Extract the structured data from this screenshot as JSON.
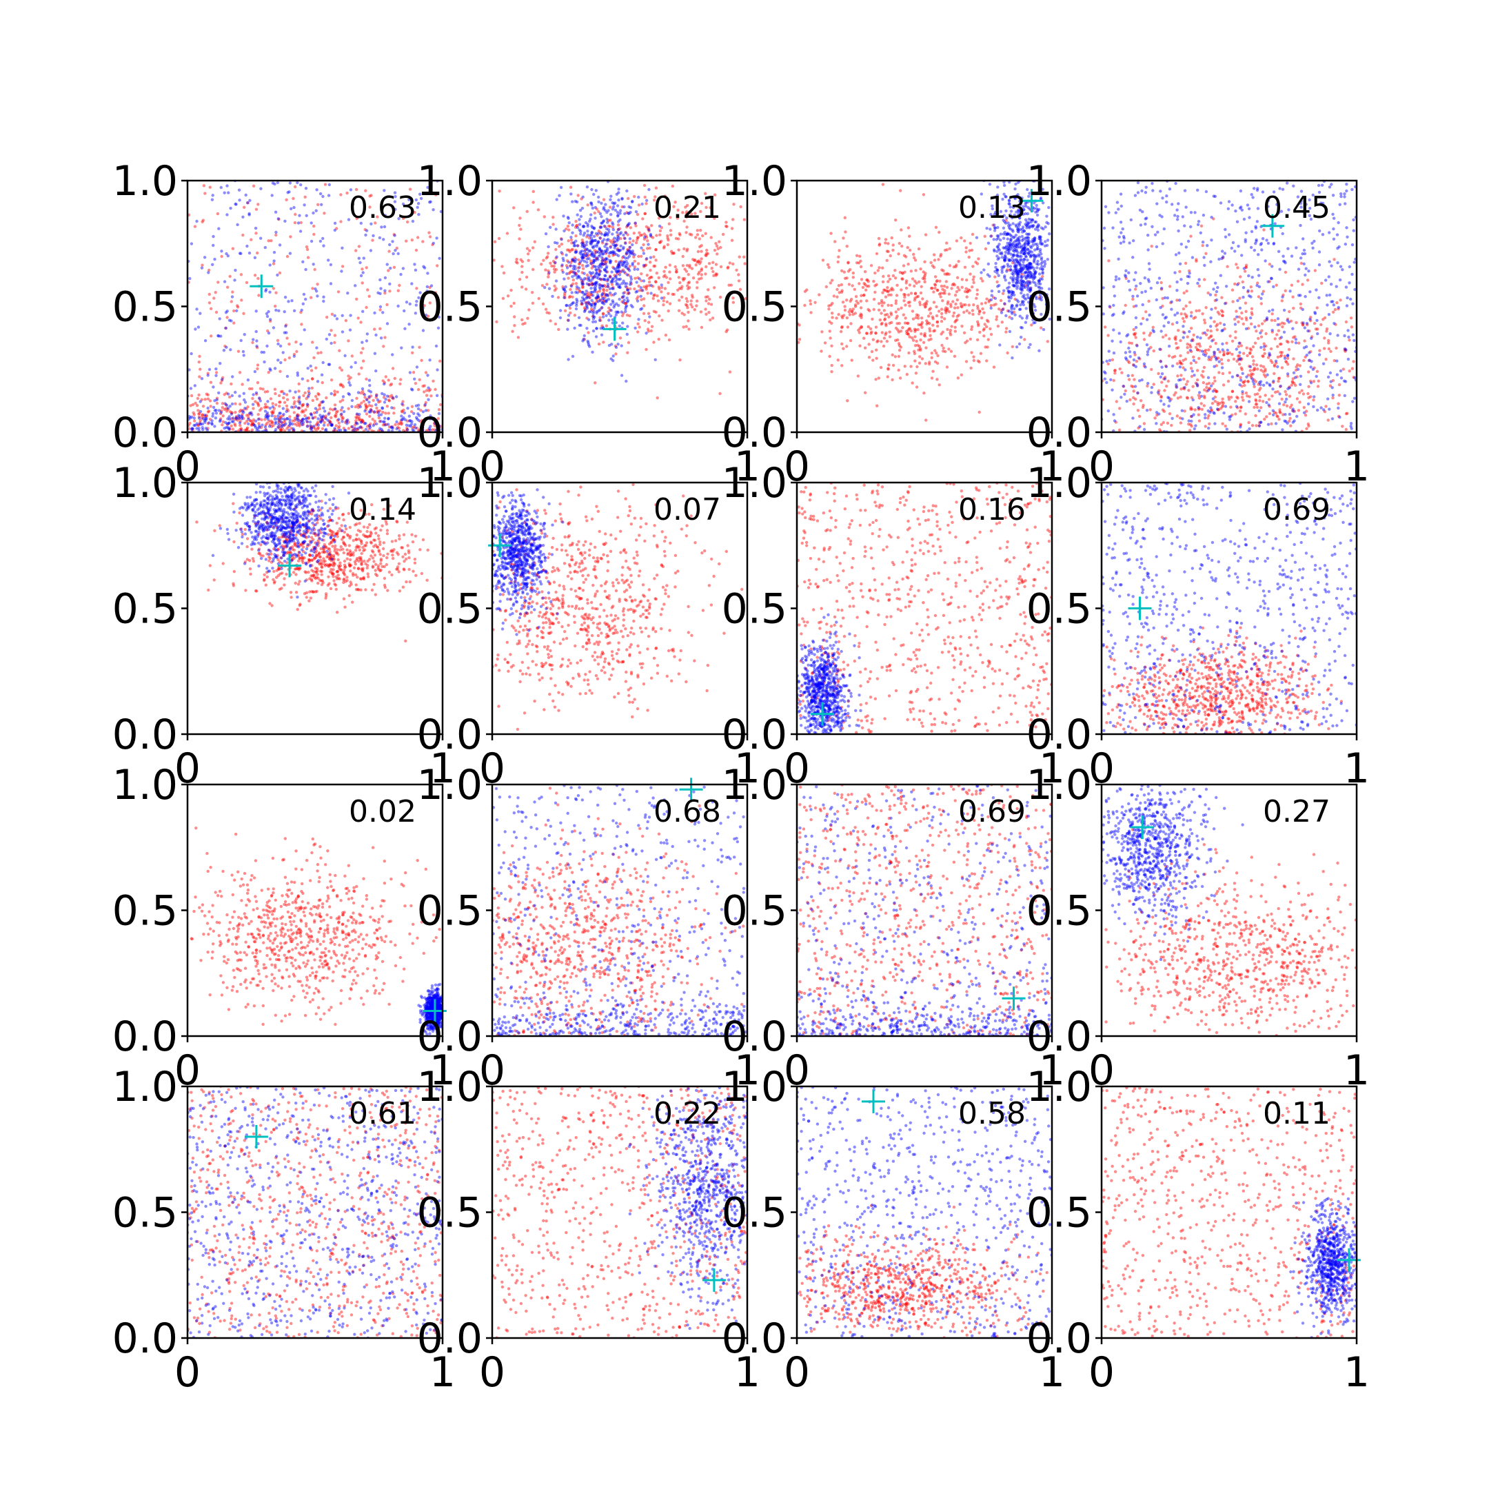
{
  "chart_data": {
    "type": "scatter",
    "grid": false,
    "rows": 4,
    "cols": 4,
    "colors": {
      "series_a": "#ff0000",
      "series_b": "#0000ff",
      "marker": "#00bfbf"
    },
    "xlim": [
      0,
      1
    ],
    "ylim": [
      0,
      1
    ],
    "xticks": [
      0,
      1
    ],
    "xtick_labels": [
      "0",
      "1"
    ],
    "yticks": [
      0,
      0.5,
      1
    ],
    "ytick_labels": [
      "0.0",
      "0.5",
      "1.0"
    ],
    "panels": [
      {
        "label": "0.63",
        "marker": [
          0.29,
          0.58
        ],
        "red": {
          "center": [
            0.45,
            0.08
          ],
          "spread": [
            0.6,
            0.3
          ],
          "shape": "bottom-band"
        },
        "blue": {
          "center": [
            0.5,
            0.4
          ],
          "spread": [
            0.55,
            0.5
          ],
          "shape": "uniform-with-bottom-band"
        }
      },
      {
        "label": "0.21",
        "marker": [
          0.48,
          0.41
        ],
        "red": {
          "center": [
            0.55,
            0.65
          ],
          "spread": [
            0.5,
            0.2
          ],
          "shape": "horizontal"
        },
        "blue": {
          "center": [
            0.43,
            0.66
          ],
          "spread": [
            0.12,
            0.22
          ],
          "shape": "blob"
        }
      },
      {
        "label": "0.13",
        "marker": [
          0.92,
          0.92
        ],
        "red": {
          "center": [
            0.45,
            0.5
          ],
          "spread": [
            0.35,
            0.2
          ],
          "shape": "broad"
        },
        "blue": {
          "center": [
            0.88,
            0.7
          ],
          "spread": [
            0.08,
            0.2
          ],
          "shape": "blob"
        }
      },
      {
        "label": "0.45",
        "marker": [
          0.67,
          0.82
        ],
        "red": {
          "center": [
            0.5,
            0.25
          ],
          "spread": [
            0.5,
            0.3
          ],
          "shape": "broad"
        },
        "blue": {
          "center": [
            0.5,
            0.55
          ],
          "spread": [
            0.5,
            0.45
          ],
          "shape": "uniform"
        }
      },
      {
        "label": "0.14",
        "marker": [
          0.4,
          0.67
        ],
        "red": {
          "center": [
            0.55,
            0.72
          ],
          "spread": [
            0.3,
            0.12
          ],
          "shape": "horizontal"
        },
        "blue": {
          "center": [
            0.38,
            0.85
          ],
          "spread": [
            0.12,
            0.12
          ],
          "shape": "blob"
        }
      },
      {
        "label": "0.07",
        "marker": [
          0.03,
          0.75
        ],
        "red": {
          "center": [
            0.35,
            0.5
          ],
          "spread": [
            0.35,
            0.3
          ],
          "shape": "broad"
        },
        "blue": {
          "center": [
            0.1,
            0.72
          ],
          "spread": [
            0.08,
            0.15
          ],
          "shape": "blob"
        }
      },
      {
        "label": "0.16",
        "marker": [
          0.1,
          0.08
        ],
        "red": {
          "center": [
            0.55,
            0.45
          ],
          "spread": [
            0.45,
            0.45
          ],
          "shape": "uniform"
        },
        "blue": {
          "center": [
            0.1,
            0.15
          ],
          "spread": [
            0.07,
            0.15
          ],
          "shape": "blob"
        }
      },
      {
        "label": "0.69",
        "marker": [
          0.15,
          0.5
        ],
        "red": {
          "center": [
            0.45,
            0.15
          ],
          "spread": [
            0.35,
            0.15
          ],
          "shape": "broad"
        },
        "blue": {
          "center": [
            0.5,
            0.5
          ],
          "spread": [
            0.5,
            0.45
          ],
          "shape": "uniform"
        }
      },
      {
        "label": "0.02",
        "marker": [
          0.97,
          0.1
        ],
        "red": {
          "center": [
            0.45,
            0.4
          ],
          "spread": [
            0.35,
            0.2
          ],
          "shape": "broad"
        },
        "blue": {
          "center": [
            0.97,
            0.1
          ],
          "spread": [
            0.03,
            0.05
          ],
          "shape": "blob"
        }
      },
      {
        "label": "0.68",
        "marker": [
          0.78,
          0.98
        ],
        "red": {
          "center": [
            0.35,
            0.35
          ],
          "spread": [
            0.4,
            0.3
          ],
          "shape": "broad"
        },
        "blue": {
          "center": [
            0.5,
            0.45
          ],
          "spread": [
            0.5,
            0.45
          ],
          "shape": "uniform-with-bottom-band"
        }
      },
      {
        "label": "0.69",
        "marker": [
          0.85,
          0.15
        ],
        "red": {
          "center": [
            0.4,
            0.5
          ],
          "spread": [
            0.45,
            0.45
          ],
          "shape": "uniform"
        },
        "blue": {
          "center": [
            0.5,
            0.4
          ],
          "spread": [
            0.5,
            0.45
          ],
          "shape": "uniform-with-bottom-band"
        }
      },
      {
        "label": "0.27",
        "marker": [
          0.16,
          0.83
        ],
        "red": {
          "center": [
            0.55,
            0.3
          ],
          "spread": [
            0.45,
            0.25
          ],
          "shape": "broad"
        },
        "blue": {
          "center": [
            0.2,
            0.75
          ],
          "spread": [
            0.15,
            0.2
          ],
          "shape": "blob"
        }
      },
      {
        "label": "0.61",
        "marker": [
          0.27,
          0.8
        ],
        "red": {
          "center": [
            0.55,
            0.4
          ],
          "spread": [
            0.45,
            0.4
          ],
          "shape": "uniform"
        },
        "blue": {
          "center": [
            0.3,
            0.4
          ],
          "spread": [
            0.3,
            0.4
          ],
          "shape": "uniform"
        }
      },
      {
        "label": "0.22",
        "marker": [
          0.87,
          0.23
        ],
        "red": {
          "center": [
            0.45,
            0.35
          ],
          "spread": [
            0.45,
            0.35
          ],
          "shape": "uniform"
        },
        "blue": {
          "center": [
            0.85,
            0.6
          ],
          "spread": [
            0.15,
            0.3
          ],
          "shape": "blob"
        }
      },
      {
        "label": "0.58",
        "marker": [
          0.3,
          0.94
        ],
        "red": {
          "center": [
            0.4,
            0.2
          ],
          "spread": [
            0.4,
            0.15
          ],
          "shape": "broad"
        },
        "blue": {
          "center": [
            0.55,
            0.55
          ],
          "spread": [
            0.45,
            0.45
          ],
          "shape": "uniform"
        }
      },
      {
        "label": "0.11",
        "marker": [
          0.97,
          0.31
        ],
        "red": {
          "center": [
            0.45,
            0.35
          ],
          "spread": [
            0.4,
            0.35
          ],
          "shape": "uniform"
        },
        "blue": {
          "center": [
            0.9,
            0.3
          ],
          "spread": [
            0.07,
            0.15
          ],
          "shape": "blob"
        }
      }
    ]
  }
}
